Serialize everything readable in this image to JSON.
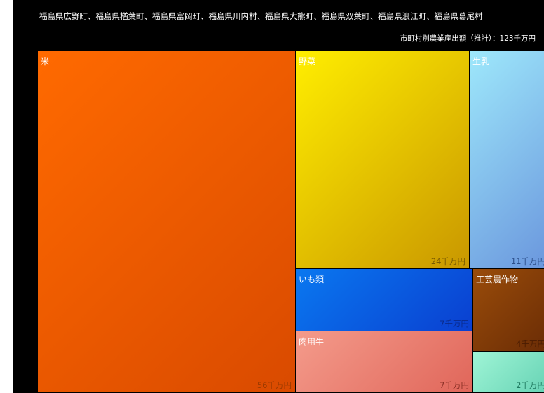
{
  "header": {
    "title": "福島県広野町、福島県楢葉町、福島県富岡町、福島県川内村、福島県大熊町、福島県双葉町、福島県浪江町、福島県葛尾村",
    "total_label": "市町村別農業産出額（推計）：123千万円"
  },
  "chart_data": {
    "type": "treemap",
    "title": "福島県広野町、福島県楢葉町、福島県富岡町、福島県川内村、福島県大熊町、福島県双葉町、福島県浪江町、福島県葛尾村",
    "total": 123,
    "unit": "千万円",
    "items": [
      {
        "name": "米",
        "value": 56,
        "value_label": "56千万円",
        "color_from": "#ff6a00",
        "color_to": "#d94a00",
        "text_color": "#ffffff",
        "value_color": "#9a3a00"
      },
      {
        "name": "野菜",
        "value": 24,
        "value_label": "24千万円",
        "color_from": "#ffee00",
        "color_to": "#c99700",
        "text_color": "#ffffff",
        "value_color": "#7a5a00"
      },
      {
        "name": "生乳",
        "value": 11,
        "value_label": "11千万円",
        "color_from": "#9ee8fb",
        "color_to": "#6a96dd",
        "text_color": "#ffffff",
        "value_color": "#2c4f8a"
      },
      {
        "name": "いも類",
        "value": 7,
        "value_label": "7千万円",
        "color_from": "#0a78f0",
        "color_to": "#0a3fd0",
        "text_color": "#ffffff",
        "value_color": "#0a2a8a"
      },
      {
        "name": "工芸農作物",
        "value": 4,
        "value_label": "4千万円",
        "color_from": "#9a4c0a",
        "color_to": "#6a2c05",
        "text_color": "#ffffff",
        "value_color": "#4a1c02"
      },
      {
        "name": "肉用牛",
        "value": 7,
        "value_label": "7千万円",
        "color_from": "#f49b8b",
        "color_to": "#e0665a",
        "text_color": "#ffffff",
        "value_color": "#8a2f25"
      },
      {
        "name": "",
        "value": 2,
        "value_label": "2千万円",
        "color_from": "#9ff5d6",
        "color_to": "#66d2b4",
        "text_color": "#ffffff",
        "value_color": "#1f7a60"
      }
    ]
  }
}
